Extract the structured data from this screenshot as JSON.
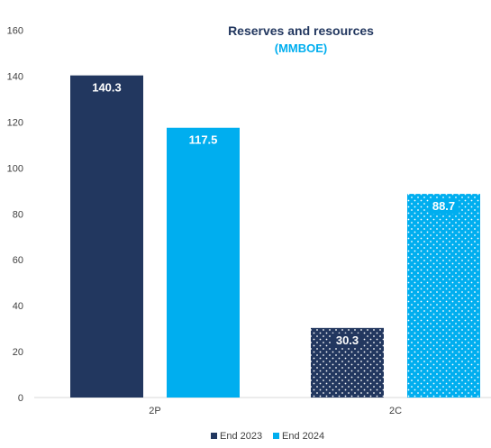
{
  "chart_data": {
    "type": "bar",
    "title": "Reserves and resources",
    "subtitle": "(MMBOE)",
    "categories": [
      "2P",
      "2C"
    ],
    "series": [
      {
        "name": "End 2023",
        "values": [
          140.3,
          30.3
        ],
        "labels": [
          "140.3",
          "30.3"
        ]
      },
      {
        "name": "End 2024",
        "values": [
          117.5,
          88.7
        ],
        "labels": [
          "117.5",
          "88.7"
        ]
      }
    ],
    "y_ticks": [
      "0",
      "20",
      "40",
      "60",
      "80",
      "100",
      "120",
      "140",
      "160"
    ],
    "ylim": [
      0,
      160
    ],
    "grid": false,
    "legend_position": "bottom-center",
    "patterned_categories": [
      "2C"
    ]
  },
  "colors": {
    "end_2023": "#22375f",
    "end_2024": "#00aeef",
    "title": "#22375f",
    "subtitle": "#00aeef",
    "axis": "#d9d9d9",
    "text": "#404040"
  }
}
